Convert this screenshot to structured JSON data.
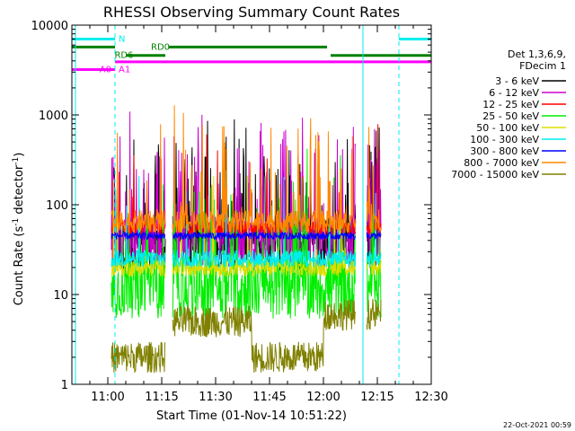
{
  "chart_data": {
    "type": "line",
    "title": "RHESSI Observing Summary Count Rates",
    "xlabel": "Start Time (01-Nov-14 10:51:22)",
    "ylabel_main": "Count Rate (s",
    "ylabel_sup1": "-1",
    "ylabel_mid": " detector",
    "ylabel_sup2": "-1",
    "ylabel_end": ")",
    "yscale": "log",
    "ylim": [
      1,
      10000
    ],
    "xlim_minutes": [
      -10,
      90
    ],
    "x_ticks": [
      {
        "m": 0,
        "label": "11:00"
      },
      {
        "m": 15,
        "label": "11:15"
      },
      {
        "m": 30,
        "label": "11:30"
      },
      {
        "m": 45,
        "label": "11:45"
      },
      {
        "m": 60,
        "label": "12:00"
      },
      {
        "m": 75,
        "label": "12:15"
      },
      {
        "m": 90,
        "label": "12:30"
      }
    ],
    "y_ticks": [
      {
        "v": 1,
        "label": "1"
      },
      {
        "v": 10,
        "label": "10"
      },
      {
        "v": 100,
        "label": "100"
      },
      {
        "v": 1000,
        "label": "1000"
      },
      {
        "v": 10000,
        "label": "10000"
      }
    ],
    "legend_header": [
      "Det 1,3,6,9,",
      "FDecim 1"
    ],
    "series": [
      {
        "name": "3 - 6 keV",
        "color": "#000000",
        "level": 35,
        "spread": 0.6,
        "spike": 0.25
      },
      {
        "name": "6 - 12 keV",
        "color": "#cc00cc",
        "level": 40,
        "spread": 0.6,
        "spike": 0.2
      },
      {
        "name": "12 - 25 keV",
        "color": "#ff0000",
        "level": 55,
        "spread": 0.15,
        "spike": 0.03
      },
      {
        "name": "25 - 50 keV",
        "color": "#00ee00",
        "level": 12,
        "spread": 0.7,
        "spike": 0.15
      },
      {
        "name": "50 - 100 keV",
        "color": "#dddd00",
        "level": 20,
        "spread": 0.2,
        "spike": 0.02
      },
      {
        "name": "100 - 300 keV",
        "color": "#00eeee",
        "level": 25,
        "spread": 0.2,
        "spike": 0.02
      },
      {
        "name": "300 - 800 keV",
        "color": "#0000ff",
        "level": 45,
        "spread": 0.08,
        "spike": 0.0
      },
      {
        "name": "800 - 7000 keV",
        "color": "#ff8800",
        "level": 65,
        "spread": 0.25,
        "spike": 0.1
      },
      {
        "name": "7000 - 15000 keV",
        "color": "#808000",
        "level": 4,
        "spread": 0.35,
        "spike": 0.0
      }
    ],
    "data_window_minutes": [
      1,
      16,
      18,
      69,
      72,
      76
    ],
    "flag_labels": [
      "N",
      "RD0",
      "RD6",
      "A0",
      "A1"
    ],
    "flag_colors": {
      "N": "#00eeee",
      "RD": "#008000",
      "A": "#ff00ff"
    },
    "vertical_markers_minutes": [
      -9,
      2,
      71,
      81
    ]
  },
  "timestamp": "22-Oct-2021 00:59"
}
